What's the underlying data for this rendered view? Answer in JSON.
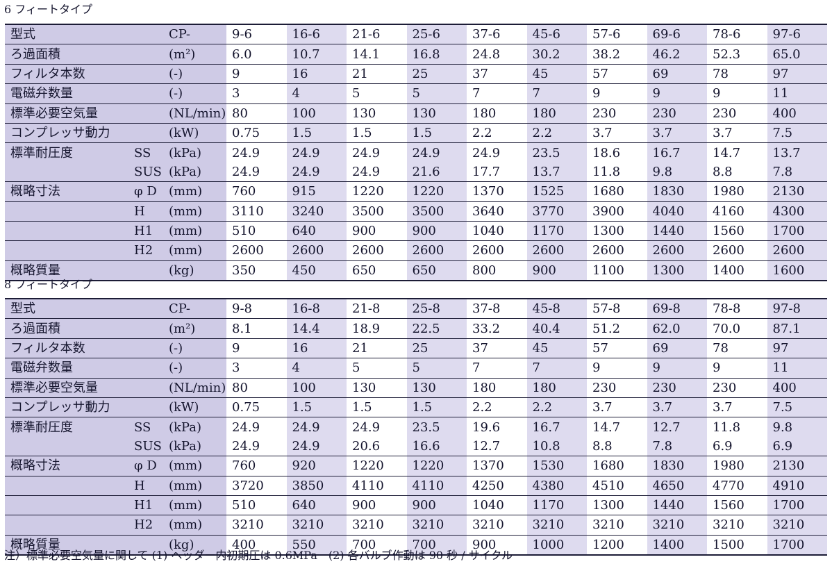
{
  "models": [
    "9",
    "16",
    "21",
    "25",
    "37",
    "45",
    "57",
    "69",
    "78",
    "97"
  ],
  "row_labels": {
    "model": "型式",
    "area": "ろ過面積",
    "filters": "フィルタ本数",
    "valves": "電磁弁数量",
    "air": "標準必要空気量",
    "compressor": "コンプレッサ動力",
    "pressure": "標準耐圧度",
    "dims": "概略寸法",
    "mass": "概略質量"
  },
  "sub_labels": {
    "ss": "SS",
    "sus": "SUS",
    "d": "φ D",
    "h": "H",
    "h1": "H1",
    "h2": "H2"
  },
  "units": {
    "model": "CP-",
    "area": "(m²)",
    "filters": "(-)",
    "valves": "(-)",
    "air": "(NL/min)",
    "compressor": "(kW)",
    "kpa": "(kPa)",
    "mm": "(mm)",
    "kg": "(kg)"
  },
  "tables": [
    {
      "caption": "6 フィートタイプ",
      "model_codes": [
        "9-6",
        "16-6",
        "21-6",
        "25-6",
        "37-6",
        "45-6",
        "57-6",
        "69-6",
        "78-6",
        "97-6"
      ],
      "area": [
        "6.0",
        "10.7",
        "14.1",
        "16.8",
        "24.8",
        "30.2",
        "38.2",
        "46.2",
        "52.3",
        "65.0"
      ],
      "filters": [
        "9",
        "16",
        "21",
        "25",
        "37",
        "45",
        "57",
        "69",
        "78",
        "97"
      ],
      "valves": [
        "3",
        "4",
        "5",
        "5",
        "7",
        "7",
        "9",
        "9",
        "9",
        "11"
      ],
      "air": [
        "80",
        "100",
        "130",
        "130",
        "180",
        "180",
        "230",
        "230",
        "230",
        "400"
      ],
      "compressor": [
        "0.75",
        "1.5",
        "1.5",
        "1.5",
        "2.2",
        "2.2",
        "3.7",
        "3.7",
        "3.7",
        "7.5"
      ],
      "ss": [
        "24.9",
        "24.9",
        "24.9",
        "24.9",
        "24.9",
        "23.5",
        "18.6",
        "16.7",
        "14.7",
        "13.7"
      ],
      "sus": [
        "24.9",
        "24.9",
        "24.9",
        "21.6",
        "17.7",
        "13.7",
        "11.8",
        "9.8",
        "8.8",
        "7.8"
      ],
      "d": [
        "760",
        "915",
        "1220",
        "1220",
        "1370",
        "1525",
        "1680",
        "1830",
        "1980",
        "2130"
      ],
      "h": [
        "3110",
        "3240",
        "3500",
        "3500",
        "3640",
        "3770",
        "3900",
        "4040",
        "4160",
        "4300"
      ],
      "h1": [
        "510",
        "640",
        "900",
        "900",
        "1040",
        "1170",
        "1300",
        "1440",
        "1560",
        "1700"
      ],
      "h2": [
        "2600",
        "2600",
        "2600",
        "2600",
        "2600",
        "2600",
        "2600",
        "2600",
        "2600",
        "2600"
      ],
      "mass": [
        "350",
        "450",
        "650",
        "650",
        "800",
        "900",
        "1100",
        "1300",
        "1400",
        "1600"
      ]
    },
    {
      "caption": "8 フィートタイプ",
      "model_codes": [
        "9-8",
        "16-8",
        "21-8",
        "25-8",
        "37-8",
        "45-8",
        "57-8",
        "69-8",
        "78-8",
        "97-8"
      ],
      "area": [
        "8.1",
        "14.4",
        "18.9",
        "22.5",
        "33.2",
        "40.4",
        "51.2",
        "62.0",
        "70.0",
        "87.1"
      ],
      "filters": [
        "9",
        "16",
        "21",
        "25",
        "37",
        "45",
        "57",
        "69",
        "78",
        "97"
      ],
      "valves": [
        "3",
        "4",
        "5",
        "5",
        "7",
        "7",
        "9",
        "9",
        "9",
        "11"
      ],
      "air": [
        "80",
        "100",
        "130",
        "130",
        "180",
        "180",
        "230",
        "230",
        "230",
        "400"
      ],
      "compressor": [
        "0.75",
        "1.5",
        "1.5",
        "1.5",
        "2.2",
        "2.2",
        "3.7",
        "3.7",
        "3.7",
        "7.5"
      ],
      "ss": [
        "24.9",
        "24.9",
        "24.9",
        "23.5",
        "19.6",
        "16.7",
        "14.7",
        "12.7",
        "11.8",
        "9.8"
      ],
      "sus": [
        "24.9",
        "24.9",
        "20.6",
        "16.6",
        "12.7",
        "10.8",
        "8.8",
        "7.8",
        "6.9",
        "6.9"
      ],
      "d": [
        "760",
        "920",
        "1220",
        "1220",
        "1370",
        "1530",
        "1680",
        "1830",
        "1980",
        "2130"
      ],
      "h": [
        "3720",
        "3850",
        "4110",
        "4110",
        "4250",
        "4380",
        "4510",
        "4650",
        "4770",
        "4910"
      ],
      "h1": [
        "510",
        "640",
        "900",
        "900",
        "1040",
        "1170",
        "1300",
        "1440",
        "1560",
        "1700"
      ],
      "h2": [
        "3210",
        "3210",
        "3210",
        "3210",
        "3210",
        "3210",
        "3210",
        "3210",
        "3210",
        "3210"
      ],
      "mass": [
        "400",
        "550",
        "700",
        "700",
        "900",
        "1000",
        "1200",
        "1400",
        "1500",
        "1700"
      ]
    }
  ],
  "note": "注）標準必要空気量に関して (1) ヘッダー内初期圧は 0.6MPa　(2) 各バルブ作動は 90 秒 / サイクル",
  "colors": {
    "label_bg": "#cfcbe6",
    "alt_col_bg": "#dedbef",
    "border": "#1c1c36",
    "text": "#15152e"
  }
}
